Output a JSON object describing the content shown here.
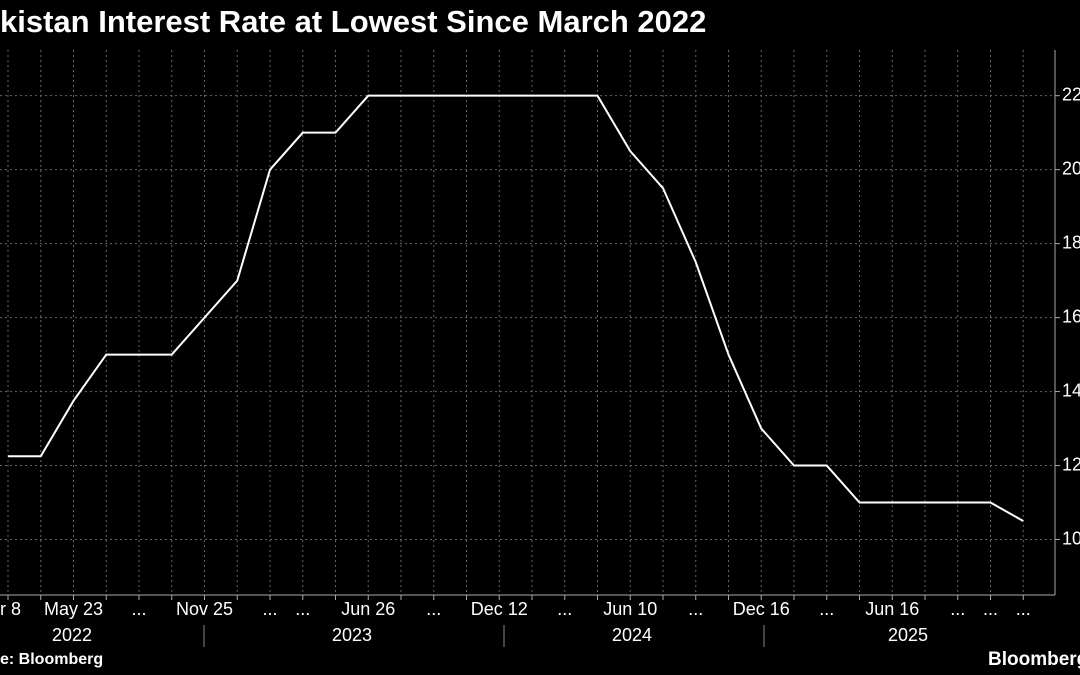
{
  "chart_data": {
    "type": "line",
    "title": "kistan Interest Rate at Lowest Since March 2022",
    "source": "e: Bloomberg",
    "brand": "Bloomberg",
    "categories": [
      "r 8",
      null,
      "May 23",
      null,
      "...",
      null,
      "Nov 25",
      null,
      "...",
      "...",
      null,
      "Jun 26",
      null,
      "...",
      null,
      "Dec 12",
      null,
      "...",
      null,
      "Jun 10",
      null,
      "...",
      null,
      "Dec 16",
      null,
      "...",
      null,
      "Jun 16",
      null,
      "...",
      "...",
      "..."
    ],
    "year_labels": [
      "2022",
      "2023",
      "2024",
      "2025"
    ],
    "series": [
      {
        "color": "#ffffff",
        "values": [
          12.25,
          12.25,
          13.75,
          15,
          15,
          15,
          16,
          17,
          20,
          21,
          21,
          22,
          22,
          22,
          22,
          22,
          22,
          22,
          22,
          20.5,
          19.5,
          17.5,
          15,
          13,
          12,
          12,
          11,
          11,
          11,
          11,
          11,
          10.5
        ]
      }
    ],
    "ylim": [
      8.5,
      23.1
    ],
    "yticks": [
      10,
      12,
      14,
      16,
      18,
      20,
      22
    ],
    "grid": true
  }
}
